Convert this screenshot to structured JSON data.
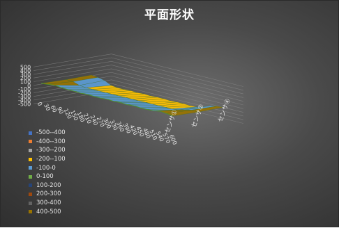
{
  "chart_data": {
    "type": "surface",
    "title": "平面形状",
    "xlabel": "",
    "ylabel": "",
    "zlabel": "",
    "z_ticks": [
      "500",
      "400",
      "300",
      "200",
      "100",
      "0",
      "-100",
      "-200",
      "-300",
      "-400",
      "-500"
    ],
    "zlim": [
      -500,
      500
    ],
    "x_ticks": [
      "0",
      "30",
      "60",
      "90",
      "120",
      "150",
      "180",
      "210",
      "240",
      "270",
      "300",
      "330",
      "360",
      "390",
      "420",
      "450",
      "480",
      "510",
      "540",
      "570",
      "600"
    ],
    "xlim": [
      0,
      600
    ],
    "series_axis_labels": [
      "センサ①",
      "センサ②",
      "センサ④"
    ],
    "legend": {
      "position": "left",
      "entries": [
        {
          "label": "-500--400",
          "color": "#4472c4"
        },
        {
          "label": "-400--300",
          "color": "#ed7d31"
        },
        {
          "label": "-300--200",
          "color": "#a5a5a5"
        },
        {
          "label": "-200--100",
          "color": "#ffc000"
        },
        {
          "label": "-100-0",
          "color": "#5b9bd5"
        },
        {
          "label": "0-100",
          "color": "#70ad47"
        },
        {
          "label": "100-200",
          "color": "#264478"
        },
        {
          "label": "200-300",
          "color": "#9e480e"
        },
        {
          "label": "300-400",
          "color": "#636363"
        },
        {
          "label": "400-500",
          "color": "#997300"
        }
      ]
    },
    "series": [
      {
        "x": [
          0,
          30,
          60,
          90,
          120,
          150,
          180,
          210,
          240,
          270,
          300,
          330,
          360,
          390,
          420,
          450,
          480,
          510,
          540,
          570,
          600
        ],
        "values": [
          20,
          40,
          60,
          40,
          30,
          30,
          20,
          30,
          20,
          20,
          30,
          20,
          30,
          20,
          30,
          20,
          20,
          30,
          60,
          40,
          20
        ]
      },
      {
        "x": [
          0,
          30,
          60,
          90,
          120,
          150,
          180,
          210,
          240,
          270,
          300,
          330,
          360,
          390,
          420,
          450,
          480,
          510,
          540,
          570,
          600
        ],
        "values": [
          10,
          0,
          -60,
          -80,
          -80,
          -80,
          -80,
          -80,
          -80,
          -80,
          -80,
          -80,
          -80,
          -80,
          -80,
          -80,
          -80,
          -60,
          -20,
          20,
          10
        ]
      },
      {
        "x": [
          0,
          30,
          60,
          90,
          120,
          150,
          180,
          210,
          240,
          270,
          300,
          330,
          360,
          390,
          420,
          450,
          480,
          510,
          540,
          570,
          600
        ],
        "values": [
          20,
          0,
          -40,
          -130,
          -150,
          -150,
          -140,
          -150,
          -140,
          -150,
          -140,
          -140,
          -150,
          -140,
          -140,
          -150,
          -140,
          -100,
          -20,
          10,
          30
        ]
      }
    ],
    "grid": true
  }
}
